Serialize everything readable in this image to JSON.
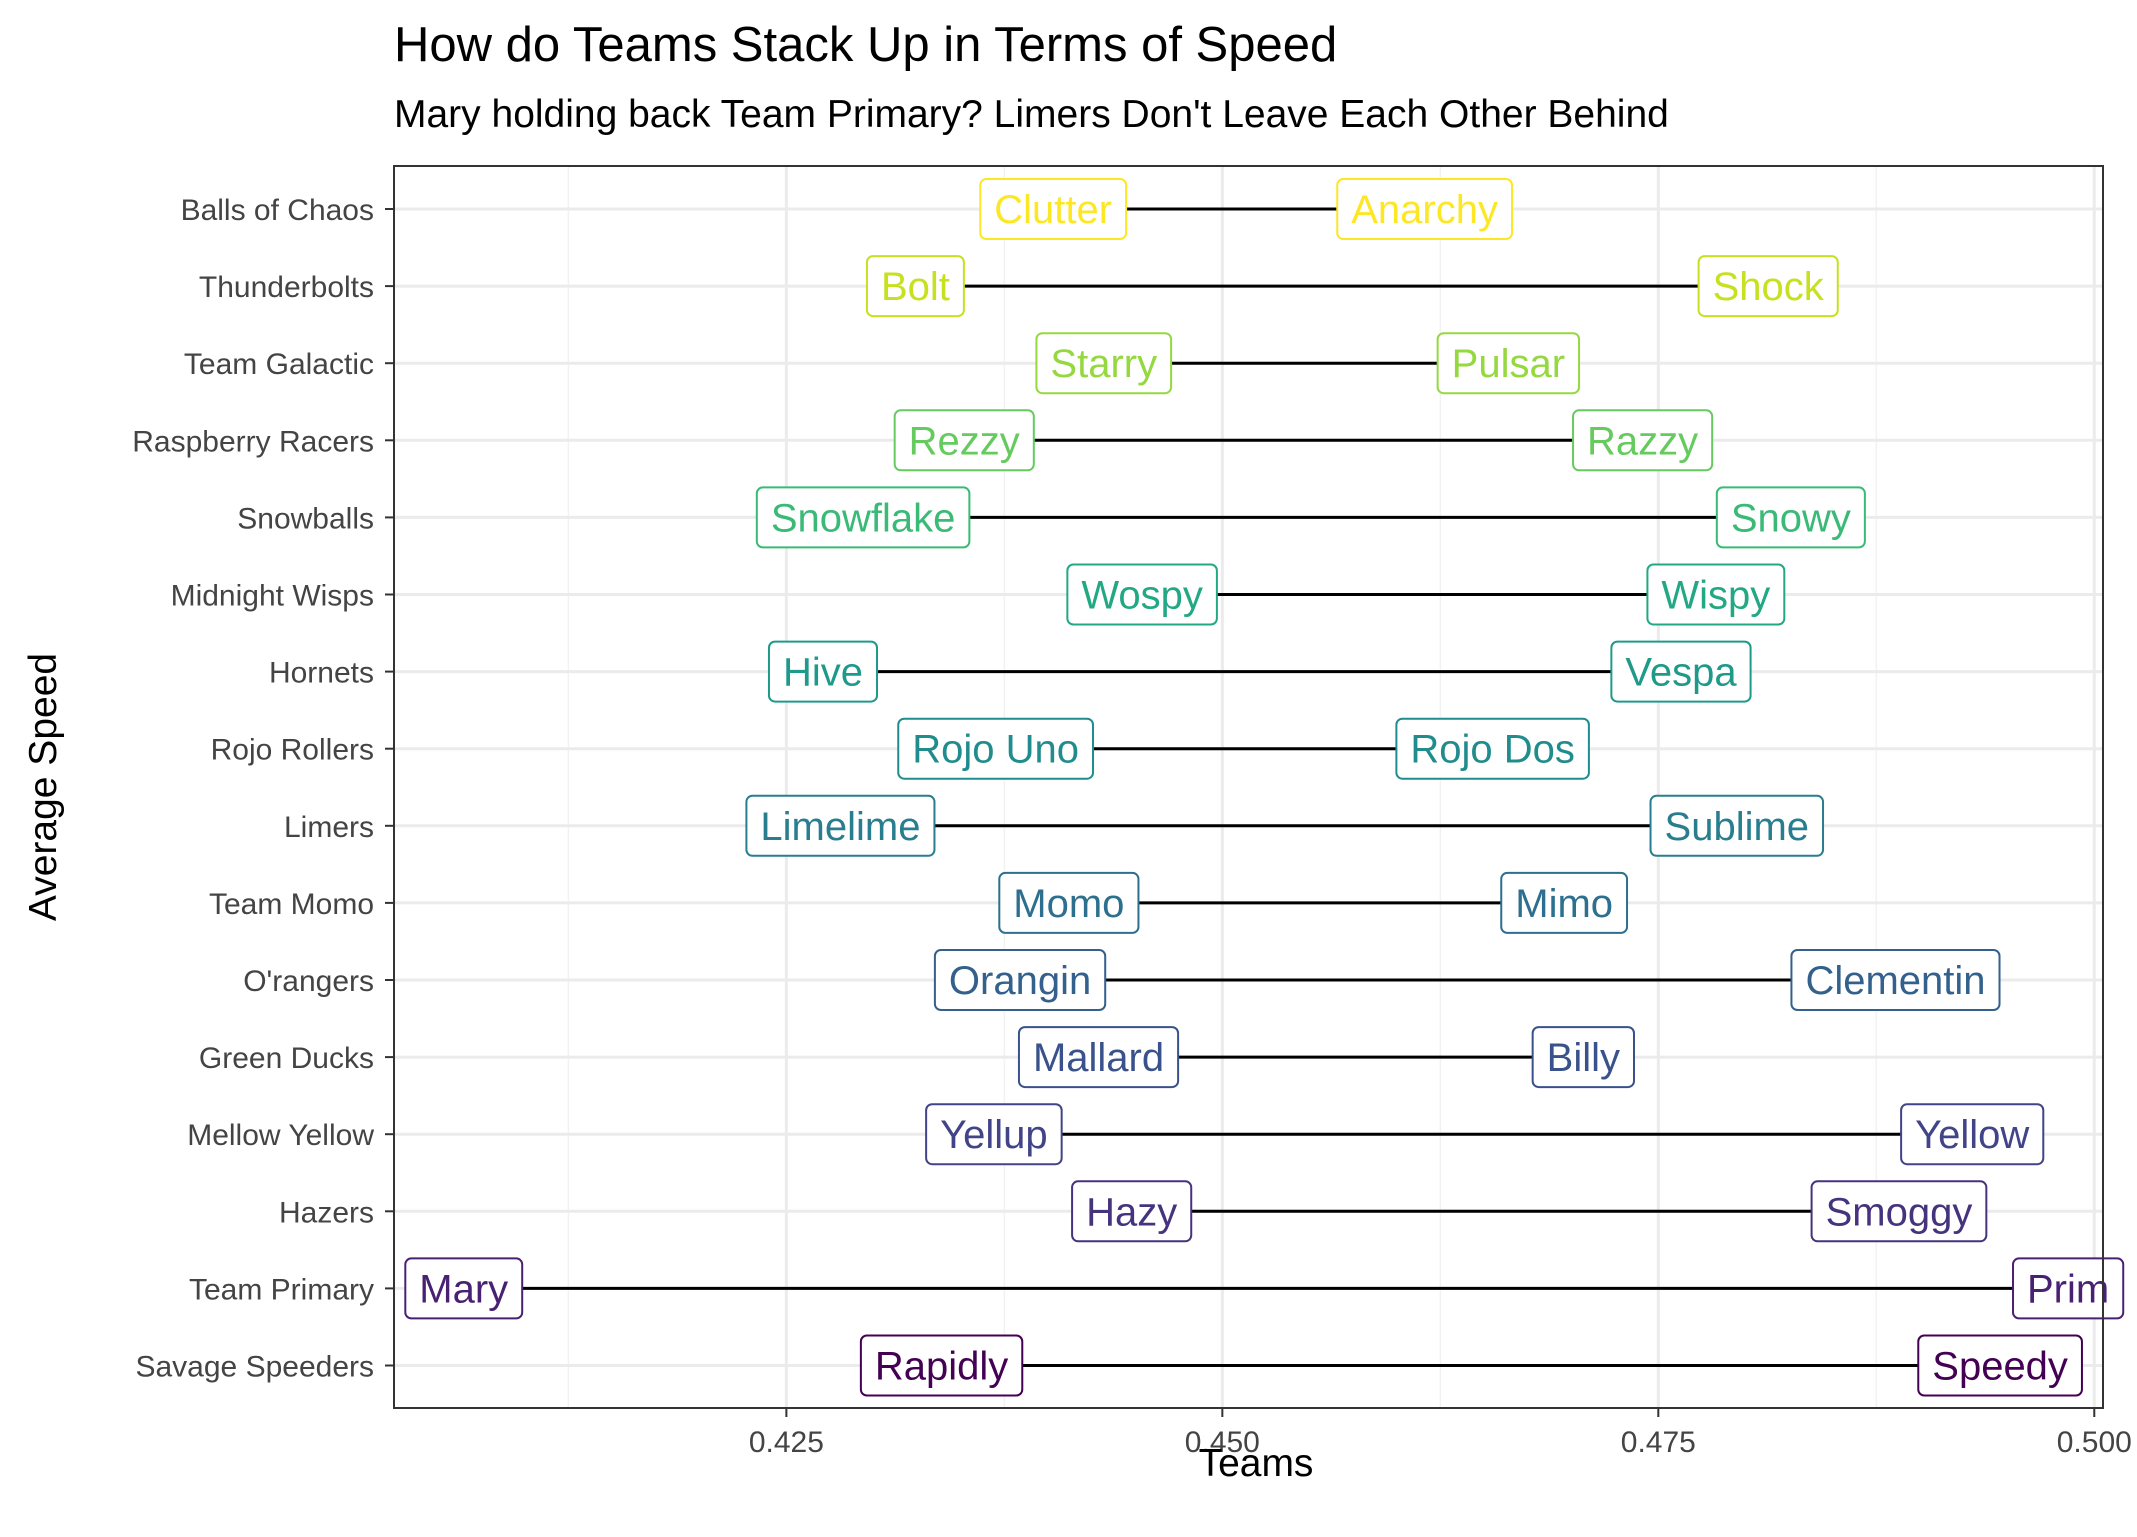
{
  "chart_data": {
    "type": "dumbbell",
    "title": "How do Teams Stack Up in Terms of Speed",
    "subtitle": "Mary holding back Team Primary? Limers Don't Leave Each Other Behind",
    "xlabel": "Teams",
    "ylabel": "Average Speed",
    "xlim": [
      0.4025,
      0.5005
    ],
    "x_ticks": [
      0.425,
      0.45,
      0.475,
      0.5
    ],
    "x_tick_labels": [
      "0.425",
      "0.450",
      "0.475",
      "0.500"
    ],
    "grid": true,
    "theme": "bw",
    "teams": [
      {
        "team": "Balls of Chaos",
        "color": "#FDE725",
        "low": {
          "name": "Clutter",
          "value": 0.4403
        },
        "high": {
          "name": "Anarchy",
          "value": 0.4616
        }
      },
      {
        "team": "Thunderbolts",
        "color": "#C7E020",
        "low": {
          "name": "Bolt",
          "value": 0.4324
        },
        "high": {
          "name": "Shock",
          "value": 0.4813
        }
      },
      {
        "team": "Team Galactic",
        "color": "#95D840",
        "low": {
          "name": "Starry",
          "value": 0.4432
        },
        "high": {
          "name": "Pulsar",
          "value": 0.4664
        }
      },
      {
        "team": "Raspberry Racers",
        "color": "#65CB5E",
        "low": {
          "name": "Rezzy",
          "value": 0.4352
        },
        "high": {
          "name": "Razzy",
          "value": 0.4741
        }
      },
      {
        "team": "Snowballs",
        "color": "#3ABA76",
        "low": {
          "name": "Snowflake",
          "value": 0.4294
        },
        "high": {
          "name": "Snowy",
          "value": 0.4826
        }
      },
      {
        "team": "Midnight Wisps",
        "color": "#22A884",
        "low": {
          "name": "Wospy",
          "value": 0.4454
        },
        "high": {
          "name": "Wispy",
          "value": 0.4783
        }
      },
      {
        "team": "Hornets",
        "color": "#1F9A8A",
        "low": {
          "name": "Hive",
          "value": 0.4271
        },
        "high": {
          "name": "Vespa",
          "value": 0.4763
        }
      },
      {
        "team": "Rojo Rollers",
        "color": "#218C8D",
        "low": {
          "name": "Rojo Uno",
          "value": 0.437
        },
        "high": {
          "name": "Rojo Dos",
          "value": 0.4655
        }
      },
      {
        "team": "Limers",
        "color": "#287D8E",
        "low": {
          "name": "Limelime",
          "value": 0.4281
        },
        "high": {
          "name": "Sublime",
          "value": 0.4795
        }
      },
      {
        "team": "Team Momo",
        "color": "#2D6F8E",
        "low": {
          "name": "Momo",
          "value": 0.4412
        },
        "high": {
          "name": "Mimo",
          "value": 0.4696
        }
      },
      {
        "team": "O'rangers",
        "color": "#33608D",
        "low": {
          "name": "Orangin",
          "value": 0.4384
        },
        "high": {
          "name": "Clementin",
          "value": 0.4886
        }
      },
      {
        "team": "Green Ducks",
        "color": "#3A528B",
        "low": {
          "name": "Mallard",
          "value": 0.4429
        },
        "high": {
          "name": "Billy",
          "value": 0.4707
        }
      },
      {
        "team": "Mellow Yellow",
        "color": "#414487",
        "low": {
          "name": "Yellup",
          "value": 0.4369
        },
        "high": {
          "name": "Yellow",
          "value": 0.493
        }
      },
      {
        "team": "Hazers",
        "color": "#46337E",
        "low": {
          "name": "Hazy",
          "value": 0.4448
        },
        "high": {
          "name": "Smoggy",
          "value": 0.4888
        }
      },
      {
        "team": "Team Primary",
        "color": "#482173",
        "low": {
          "name": "Mary",
          "value": 0.4065
        },
        "high": {
          "name": "Prim",
          "value": 0.4985
        }
      },
      {
        "team": "Savage Speeders",
        "color": "#440154",
        "low": {
          "name": "Rapidly",
          "value": 0.4339
        },
        "high": {
          "name": "Speedy",
          "value": 0.4946
        }
      }
    ]
  }
}
